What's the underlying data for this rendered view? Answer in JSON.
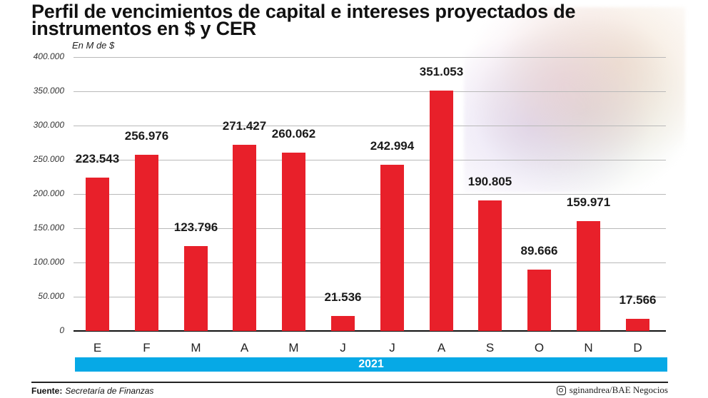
{
  "header": {
    "title": "Perfil de vencimientos de capital e intereses proyectados de instrumentos en $ y CER",
    "unit_label": "En M de $"
  },
  "axis": {
    "y_ticks": [
      "400.000",
      "350.000",
      "300.000",
      "250.000",
      "200.000",
      "150.000",
      "100.000",
      "50.000",
      "0"
    ],
    "x_labels": [
      "E",
      "F",
      "M",
      "A",
      "M",
      "J",
      "J",
      "A",
      "S",
      "O",
      "N",
      "D"
    ],
    "year": "2021"
  },
  "bars": [
    {
      "month": "E",
      "label": "223.543"
    },
    {
      "month": "F",
      "label": "256.976"
    },
    {
      "month": "M",
      "label": "123.796"
    },
    {
      "month": "A",
      "label": "271.427"
    },
    {
      "month": "M",
      "label": "260.062"
    },
    {
      "month": "J",
      "label": "21.536"
    },
    {
      "month": "J",
      "label": "242.994"
    },
    {
      "month": "A",
      "label": "351.053"
    },
    {
      "month": "S",
      "label": "190.805"
    },
    {
      "month": "O",
      "label": "89.666"
    },
    {
      "month": "N",
      "label": "159.971"
    },
    {
      "month": "D",
      "label": "17.566"
    }
  ],
  "footer": {
    "source_label": "Fuente:",
    "source_value": "Secretaría de Finanzas",
    "credit_icon": "instagram-icon",
    "credit": "sginandrea/BAE Negocios"
  },
  "colors": {
    "bar": "#e8202a",
    "year_band": "#06a9e6",
    "gridline": "#b9b9b9"
  },
  "chart_data": {
    "type": "bar",
    "title": "Perfil de vencimientos de capital e intereses proyectados de instrumentos en $ y CER",
    "subtitle": "En M de $",
    "xlabel": "2021",
    "ylabel": "En M de $",
    "categories": [
      "E",
      "F",
      "M",
      "A",
      "M",
      "J",
      "J",
      "A",
      "S",
      "O",
      "N",
      "D"
    ],
    "values": [
      223543,
      256976,
      123796,
      271427,
      260062,
      21536,
      242994,
      351053,
      190805,
      89666,
      159971,
      17566
    ],
    "data_labels": [
      "223.543",
      "256.976",
      "123.796",
      "271.427",
      "260.062",
      "21.536",
      "242.994",
      "351.053",
      "190.805",
      "89.666",
      "159.971",
      "17.566"
    ],
    "ylim": [
      0,
      400000
    ],
    "yticks": [
      0,
      50000,
      100000,
      150000,
      200000,
      250000,
      300000,
      350000,
      400000
    ],
    "grid": true,
    "legend": null,
    "source": "Secretaría de Finanzas"
  }
}
